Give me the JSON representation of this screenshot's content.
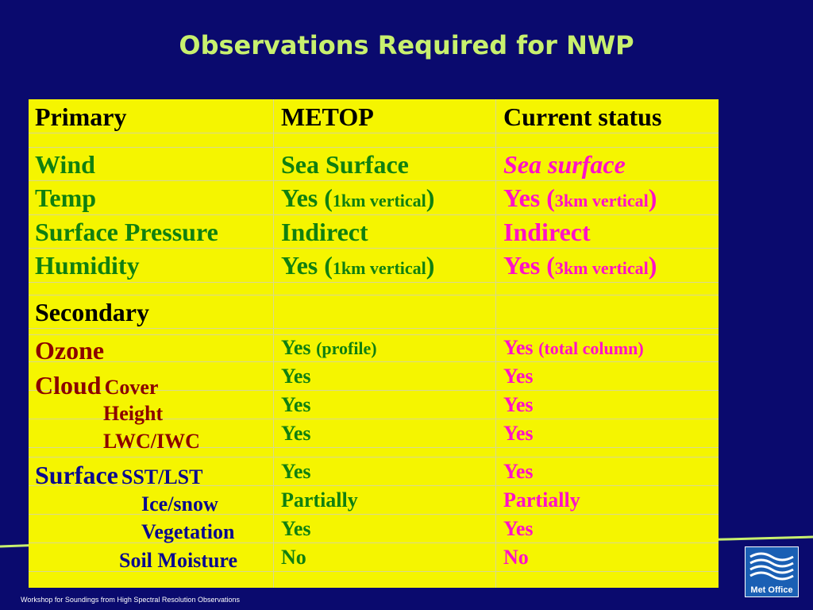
{
  "title": "Observations Required for NWP",
  "headers": {
    "primary": "Primary",
    "metop": "METOP",
    "status": "Current status"
  },
  "primary_rows": [
    {
      "param": "Wind",
      "metop": "Sea Surface",
      "status": "Sea surface"
    },
    {
      "param": "Temp",
      "metop_a": "Yes (",
      "metop_b": "1km vertical",
      "metop_c": ")",
      "status_a": "Yes (",
      "status_b": "3km vertical",
      "status_c": ")"
    },
    {
      "param": "Surface Pressure",
      "metop": "Indirect",
      "status": "Indirect"
    },
    {
      "param": "Humidity",
      "metop_a": "Yes (",
      "metop_b": "1km vertical",
      "metop_c": ")",
      "status_a": "Yes (",
      "status_b": "3km vertical",
      "status_c": ")"
    }
  ],
  "secondary_label": "Secondary",
  "ozone": {
    "param": "Ozone",
    "metop_a": "Yes ",
    "metop_b": "(profile)",
    "status_a": "Yes ",
    "status_b": "(total column)"
  },
  "cloud": {
    "label": "Cloud",
    "cover": "Cover",
    "height": "Height",
    "lwc": "LWC/IWC",
    "metop": [
      "Yes",
      "Yes",
      "Yes"
    ],
    "status": [
      "Yes",
      "Yes",
      "Yes"
    ]
  },
  "surface": {
    "label": "Surface",
    "sst": "SST/LST",
    "ice": "Ice/snow",
    "veg": "Vegetation",
    "soil": "Soil Moisture",
    "metop": [
      "Yes",
      "Partially",
      "Yes",
      "No"
    ],
    "status": [
      "Yes",
      "Partially",
      "Yes",
      "No"
    ]
  },
  "footer": "Workshop for Soundings from High Spectral Resolution Observations",
  "logo_text": "Met Office",
  "colors": {
    "background": "#0a0a6e",
    "table": "#f5f500",
    "title": "#c8f06e",
    "metop": "#108010",
    "status": "#ff10c8",
    "secondary": "#8b0000",
    "surface": "#0a0a8e"
  }
}
